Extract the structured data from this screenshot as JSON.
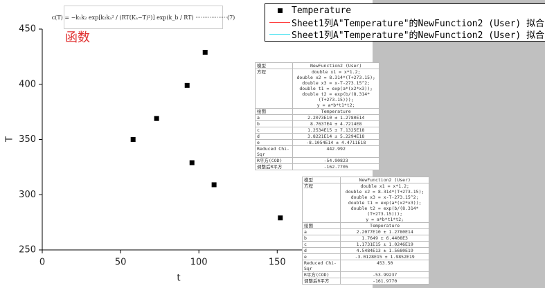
{
  "chart_data": {
    "type": "scatter",
    "x_label": "t",
    "y_label": "T",
    "xlim": [
      0,
      210
    ],
    "xticks": [
      0,
      50,
      100,
      150
    ],
    "ylim": [
      250,
      450
    ],
    "yticks": [
      250,
      300,
      350,
      400,
      450
    ],
    "series": [
      {
        "name": "Temperature",
        "color": "#000000",
        "x": [
          58,
          73,
          92.5,
          104,
          95.6,
          109.7,
          152
        ],
        "values": [
          350,
          369,
          399,
          429,
          329,
          309,
          279
        ]
      }
    ],
    "fit_curves": [
      {
        "name": "Sheet1列A\"Temperature\"的NewFunction2 (User) 拟合",
        "color": "#ff4040"
      },
      {
        "name": "Sheet1列A\"Temperature\"的NewFunction2 (User) 拟合",
        "color": "#40e0f0"
      }
    ],
    "annotation": "函数",
    "equation": "c(T) = −k₁k₂ exp[k₂kₐ² / (RT(Kₐ−T)²)] exp(k_b / RT) ··················(7)"
  },
  "reports": [
    {
      "rows": [
        [
          "模型",
          [
            "NewFunction2 (User)"
          ]
        ],
        [
          "方程",
          [
            "double x1 = x*1.2;",
            "double x2 = 8.314*(T+273.15);",
            "double x3 = x-T-273.15^2;",
            "double t1 = exp(a*(x2*x3));",
            "double t2 = exp(b/(8.314*(T+273.15)));",
            "y = a*b*t1*t2;"
          ]
        ],
        [
          "绘图",
          [
            "Temperature"
          ]
        ],
        [
          "a",
          [
            "2.2073E10 ± 1.2780E14"
          ]
        ],
        [
          "b",
          [
            "8.7637E4 ± 4.7214E8"
          ]
        ],
        [
          "c",
          [
            "1.2534E15 ± 7.1325E18"
          ]
        ],
        [
          "d",
          [
            "3.8221E14 ± 5.2294E18"
          ]
        ],
        [
          "e",
          [
            "-8.1054E14 ± 4.4711E18"
          ]
        ],
        [
          "Reduced Chi-Sqr",
          [
            "442.992"
          ]
        ],
        [
          "R平方(COD)",
          [
            "-54.90823"
          ]
        ],
        [
          "调整后R平方",
          [
            "-162.7705"
          ]
        ]
      ]
    },
    {
      "rows": [
        [
          "模型",
          [
            "NewFunction2 (User)"
          ]
        ],
        [
          "方程",
          [
            "double x1 = x*1.2;",
            "double x2 = 8.314*(T+273.15);",
            "double x3 = x-T-273.15^2;",
            "double t1 = exp(a*(x2*x3));",
            "double t2 = exp(b/(8.314*(T+273.15)));",
            "y = a*b*t1*t2;"
          ]
        ],
        [
          "绘图",
          [
            "Temperature"
          ]
        ],
        [
          "a",
          [
            "2.2077E10 ± 1.2780E14"
          ]
        ],
        [
          "b",
          [
            "1.7649 ± 6.4408E3"
          ]
        ],
        [
          "c",
          [
            "1.1731E15 ± 1.0246E19"
          ]
        ],
        [
          "d",
          [
            "4.5484E13 ± 1.5680E19"
          ]
        ],
        [
          "e",
          [
            "-3.0128E15 ± 1.9852E19"
          ]
        ],
        [
          "Reduced Chi-Sqr",
          [
            "453.50"
          ]
        ],
        [
          "R平方(COD)",
          [
            "-53.99237"
          ]
        ],
        [
          "调整后R平方",
          [
            "-161.9770"
          ]
        ]
      ]
    }
  ]
}
